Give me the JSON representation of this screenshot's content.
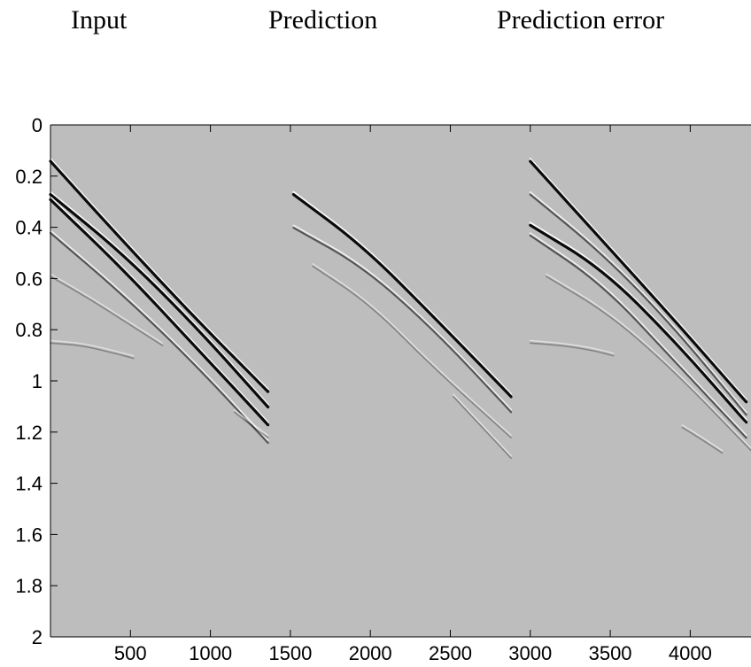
{
  "panel_titles": [
    "Input",
    "Prediction",
    "Prediction error"
  ],
  "colors": {
    "background": "#bdbdbd",
    "axis": "#000000",
    "dark_event": "#000000",
    "light_event": "#ffffff"
  },
  "chart_data": {
    "type": "heatmap",
    "description_kind": "seismic gather panels",
    "xlim": [
      0,
      4380
    ],
    "ylim": [
      0,
      2
    ],
    "y_reversed": true,
    "xticks": [
      500,
      1000,
      1500,
      2000,
      2500,
      3000,
      3500,
      4000
    ],
    "xtick_labels": [
      "500",
      "1000",
      "1500",
      "2000",
      "2500",
      "3000",
      "3500",
      "4000"
    ],
    "yticks": [
      0,
      0.2,
      0.4,
      0.6,
      0.8,
      1,
      1.2,
      1.4,
      1.6,
      1.8,
      2
    ],
    "ytick_labels": [
      "0",
      "0.2",
      "0.4",
      "0.6",
      "0.8",
      "1",
      "1.2",
      "1.4",
      "1.6",
      "1.8",
      "2"
    ],
    "panels": [
      {
        "name": "Input",
        "events": [
          {
            "x": [
              0,
              450,
              900,
              1360
            ],
            "y": [
              0.14,
              0.45,
              0.75,
              1.04
            ],
            "strength": "strong"
          },
          {
            "x": [
              0,
              450,
              900,
              1360
            ],
            "y": [
              0.27,
              0.5,
              0.78,
              1.1
            ],
            "strength": "strong"
          },
          {
            "x": [
              0,
              450,
              900,
              1360
            ],
            "y": [
              0.29,
              0.56,
              0.86,
              1.17
            ],
            "strength": "strong"
          },
          {
            "x": [
              0,
              450,
              900,
              1360
            ],
            "y": [
              0.42,
              0.66,
              0.93,
              1.24
            ],
            "strength": "medium"
          },
          {
            "x": [
              0,
              250,
              500,
              700
            ],
            "y": [
              0.59,
              0.68,
              0.78,
              0.86
            ],
            "strength": "weak"
          },
          {
            "x": [
              0,
              200,
              400,
              520
            ],
            "y": [
              0.85,
              0.86,
              0.89,
              0.91
            ],
            "strength": "weak"
          },
          {
            "x": [
              1150,
              1250,
              1360
            ],
            "y": [
              1.12,
              1.17,
              1.22
            ],
            "strength": "weak"
          }
        ]
      },
      {
        "name": "Prediction",
        "events": [
          {
            "x": [
              1520,
              1950,
              2400,
              2880
            ],
            "y": [
              0.27,
              0.47,
              0.75,
              1.06
            ],
            "strength": "strong"
          },
          {
            "x": [
              1520,
              1950,
              2400,
              2880
            ],
            "y": [
              0.4,
              0.55,
              0.8,
              1.12
            ],
            "strength": "medium"
          },
          {
            "x": [
              1640,
              2000,
              2400,
              2880
            ],
            "y": [
              0.55,
              0.7,
              0.95,
              1.22
            ],
            "strength": "weak"
          },
          {
            "x": [
              2520,
              2700,
              2880
            ],
            "y": [
              1.06,
              1.18,
              1.3
            ],
            "strength": "weak"
          }
        ]
      },
      {
        "name": "Prediction error",
        "events": [
          {
            "x": [
              3000,
              3450,
              3900,
              4350
            ],
            "y": [
              0.14,
              0.45,
              0.76,
              1.08
            ],
            "strength": "strong"
          },
          {
            "x": [
              3000,
              3450,
              3900,
              4350
            ],
            "y": [
              0.27,
              0.5,
              0.79,
              1.13
            ],
            "strength": "medium"
          },
          {
            "x": [
              3000,
              3450,
              3900,
              4350
            ],
            "y": [
              0.39,
              0.56,
              0.84,
              1.16
            ],
            "strength": "strong"
          },
          {
            "x": [
              3000,
              3450,
              3900,
              4350
            ],
            "y": [
              0.43,
              0.62,
              0.92,
              1.22
            ],
            "strength": "medium"
          },
          {
            "x": [
              3100,
              3500,
              3900,
              4380
            ],
            "y": [
              0.59,
              0.74,
              0.96,
              1.27
            ],
            "strength": "weak"
          },
          {
            "x": [
              3000,
              3200,
              3400,
              3520
            ],
            "y": [
              0.85,
              0.86,
              0.88,
              0.9
            ],
            "strength": "weak"
          },
          {
            "x": [
              3950,
              4080,
              4200
            ],
            "y": [
              1.18,
              1.23,
              1.28
            ],
            "strength": "weak"
          }
        ]
      }
    ]
  }
}
